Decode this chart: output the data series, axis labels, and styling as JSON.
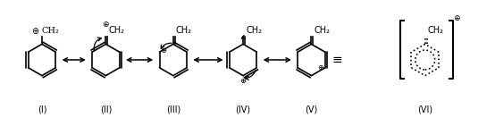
{
  "bg_color": "#ffffff",
  "line_color": "#000000",
  "labels": [
    "(I)",
    "(II)",
    "(III)",
    "(IV)",
    "(V)",
    "(VI)"
  ],
  "ch2_label": "CH₂",
  "plus_symbol": "⊕",
  "figsize": [
    5.54,
    1.32
  ],
  "dpi": 100
}
